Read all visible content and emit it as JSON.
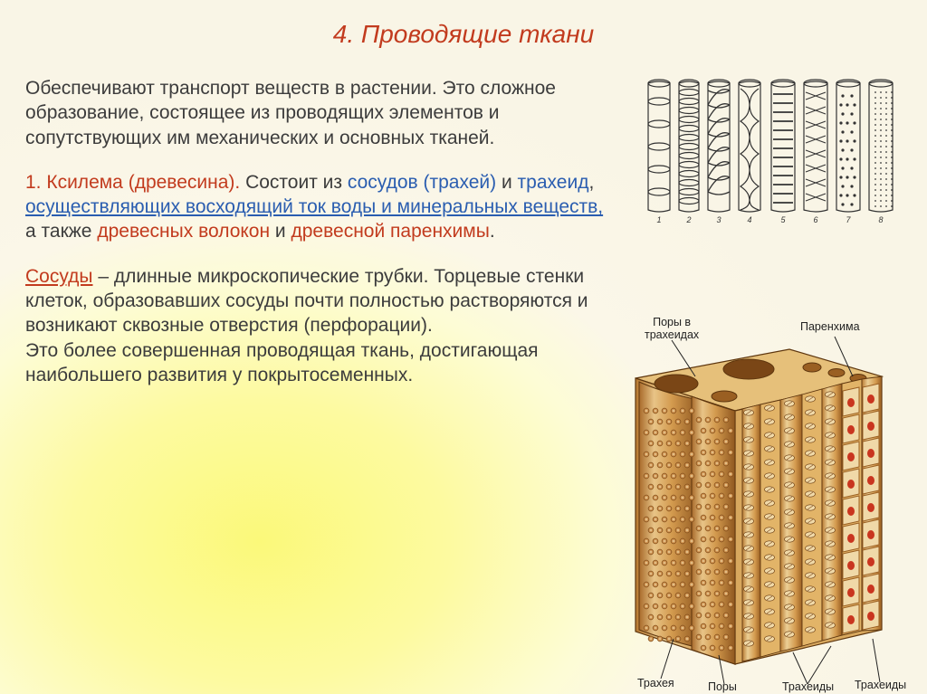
{
  "title": "4. Проводящие ткани",
  "para1": {
    "t1": "Обеспечивают транспорт веществ в растении. Это сложное образование, состоящее из проводящих элементов и сопутствующих им механических и основных тканей."
  },
  "para2": {
    "lead": "1. Ксилема (древесина).",
    "t1": " Состоит из ",
    "blue1": "сосудов (трахей)",
    "t2": " и ",
    "blue2": "трахеид",
    "t3": ", ",
    "ul1": "осуществляющих восходящий ток воды и минеральных веществ,",
    "t4": " а также ",
    "red1": "древесных волокон",
    "t5": " и ",
    "red2": "древесной паренхимы",
    "t6": "."
  },
  "para3": {
    "lead": "Сосуды",
    "t1": " – длинные микроскопические трубки. Торцевые стенки клеток, образовавших сосуды почти полностью  растворяются  и  возникают сквозные отверстия (перфорации).",
    "line2": "Это более совершенная проводящая ткань, достигающая наибольшего развития у покрытосеменных."
  },
  "woodblock": {
    "labels": {
      "pores_in_tracheids": "Поры в\nтрахеидах",
      "parenchyma": "Паренхима",
      "trachea": "Трахея",
      "pores": "Поры",
      "tracheids": "Трахеиды"
    },
    "colors": {
      "vessel_fill": "#d39a4e",
      "vessel_light": "#e8c487",
      "pit_dark": "#a86a2a",
      "pit_mid": "#c78642",
      "parenchyma_wall": "#c98c3f",
      "parenchyma_cell_fill": "#f0d9a8",
      "parenchyma_nucleus": "#c9351f",
      "stroke": "#5e360e",
      "label_line": "#222222",
      "top_face": "#e6c07a",
      "inner_lumen": "#7a4616"
    }
  },
  "tracheid_art": {
    "colors": {
      "stroke": "#333333",
      "fill": "#ffffff"
    },
    "numbers": [
      "1",
      "2",
      "3",
      "4",
      "5",
      "6",
      "7",
      "8"
    ]
  }
}
